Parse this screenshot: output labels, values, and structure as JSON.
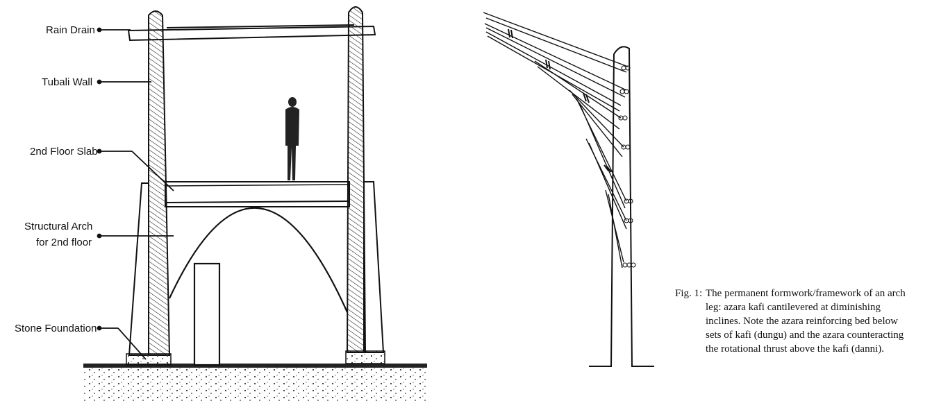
{
  "left_diagram": {
    "labels": {
      "rain_drain": "Rain Drain",
      "tubali_wall": "Tubali Wall",
      "floor_slab": "2nd Floor Slab",
      "arch_line1": "Structural Arch",
      "arch_line2": "for 2nd floor",
      "foundation": "Stone Foundation"
    }
  },
  "right_diagram": {
    "caption": {
      "fig_label": "Fig. 1:",
      "text": "The permanent formwork/framework of an arch leg: azara kafi cantilevered at diminishing inclines. Note the azara reinforcing bed below sets of kafi (dungu) and the azara counteracting the rotational thrust above the kafi (danni)."
    }
  }
}
